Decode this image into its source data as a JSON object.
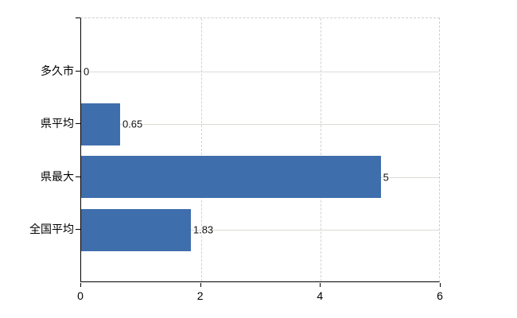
{
  "chart_data": {
    "type": "bar",
    "orientation": "horizontal",
    "title": "",
    "xlabel": "",
    "ylabel": "",
    "categories": [
      "多久市",
      "県平均",
      "県最大",
      "全国平均"
    ],
    "values": [
      0,
      0.65,
      5,
      1.83
    ],
    "value_labels": [
      "0",
      "0.65",
      "5",
      "1.83"
    ],
    "xlim": [
      0,
      6
    ],
    "x_tick_labels": [
      "0",
      "2",
      "4",
      "6"
    ],
    "x_ticks": [
      0,
      2,
      4,
      6
    ],
    "grid": true,
    "legend": false,
    "colors": {
      "bar": "#3f6ead",
      "axis": "#000000",
      "h_gridline": "#d8ddd2",
      "v_gridline": "#d2d2d2",
      "label": "#111111"
    }
  }
}
